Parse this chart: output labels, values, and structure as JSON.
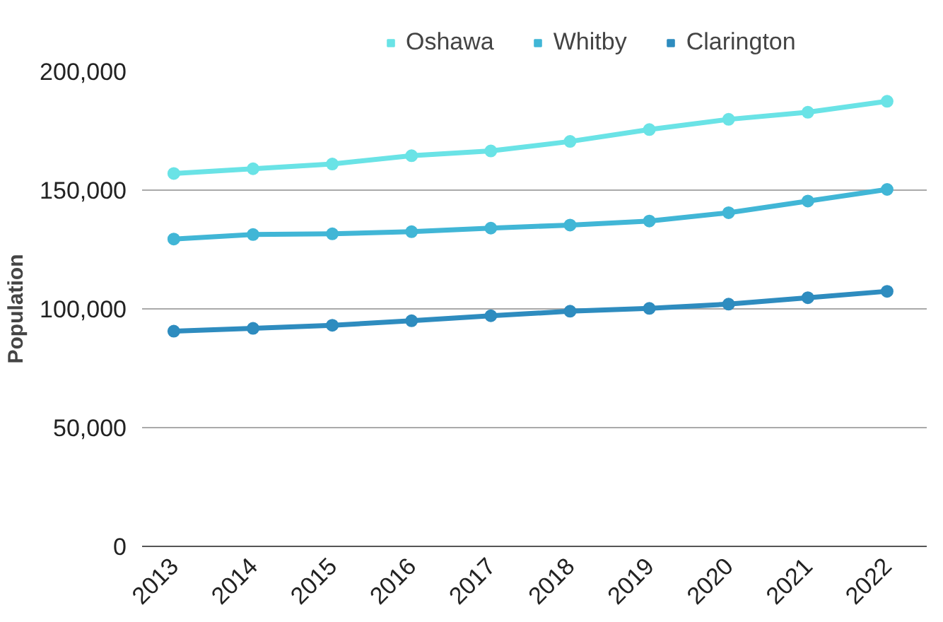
{
  "chart_data": {
    "type": "line",
    "ylabel": "Population",
    "categories": [
      "2013",
      "2014",
      "2015",
      "2016",
      "2017",
      "2018",
      "2019",
      "2020",
      "2021",
      "2022"
    ],
    "series": [
      {
        "name": "Oshawa",
        "color": "#6ae3e6",
        "values": [
          157000,
          159000,
          161000,
          164500,
          166500,
          170500,
          175500,
          179800,
          182800,
          187400
        ]
      },
      {
        "name": "Whitby",
        "color": "#41b6d6",
        "values": [
          129400,
          131300,
          131600,
          132500,
          134000,
          135300,
          137000,
          140500,
          145400,
          150300
        ]
      },
      {
        "name": "Clarington",
        "color": "#2e8cbf",
        "values": [
          90600,
          91800,
          93100,
          95000,
          97100,
          99000,
          100200,
          102000,
          104700,
          107400
        ]
      }
    ],
    "ylim": [
      0,
      200000
    ],
    "yticks": [
      {
        "value": 0,
        "label": "0"
      },
      {
        "value": 50000,
        "label": "50,000"
      },
      {
        "value": 100000,
        "label": "100,000"
      },
      {
        "value": 150000,
        "label": "150,000"
      },
      {
        "value": 200000,
        "label": "200,000"
      }
    ],
    "grid": "y",
    "legend": "top",
    "marker": "circle",
    "line_style": "solid"
  }
}
